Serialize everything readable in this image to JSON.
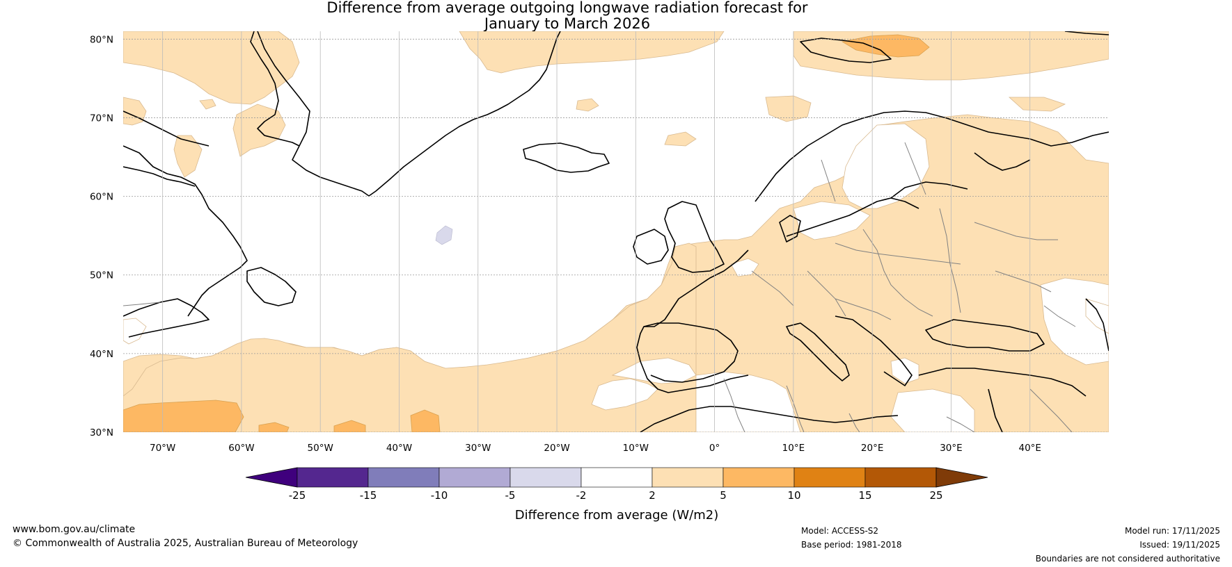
{
  "title": {
    "line1": "Difference from average outgoing longwave radiation forecast for",
    "line2": "January to March 2026"
  },
  "map": {
    "lat_ticks": [
      "80°N",
      "70°N",
      "60°N",
      "50°N",
      "40°N",
      "30°N"
    ],
    "lon_ticks": [
      "70°W",
      "60°W",
      "50°W",
      "40°W",
      "30°W",
      "20°W",
      "10°W",
      "0°",
      "10°E",
      "20°E",
      "30°E",
      "40°E"
    ],
    "lat_values": [
      80,
      70,
      60,
      50,
      40,
      30
    ],
    "lon_values": [
      -70,
      -60,
      -50,
      -40,
      -30,
      -20,
      -10,
      0,
      10,
      20,
      30,
      40
    ],
    "extent": {
      "lon_min": -75,
      "lon_max": 50,
      "lat_min": 30,
      "lat_max": 81
    }
  },
  "colorbar": {
    "title": "Difference from average (W/m2)",
    "labels": [
      "-25",
      "-15",
      "-10",
      "-5",
      "-2",
      "2",
      "5",
      "10",
      "15",
      "25"
    ],
    "colors": [
      "#3f007d",
      "#54278f",
      "#807dba",
      "#b1aad4",
      "#d9d9eb",
      "#ffffff",
      "#fde0b4",
      "#fdb863",
      "#e08214",
      "#b35806",
      "#7f3b08"
    ]
  },
  "footer": {
    "website": "www.bom.gov.au/climate",
    "copyright": "© Commonwealth of Australia 2025, Australian Bureau of Meteorology",
    "model": "Model: ACCESS-S2",
    "base_period": "Base period: 1981-2018",
    "model_run": "Model run: 17/11/2025",
    "issued": "Issued: 19/11/2025",
    "disclaimer": "Boundaries are not considered authoritative"
  }
}
